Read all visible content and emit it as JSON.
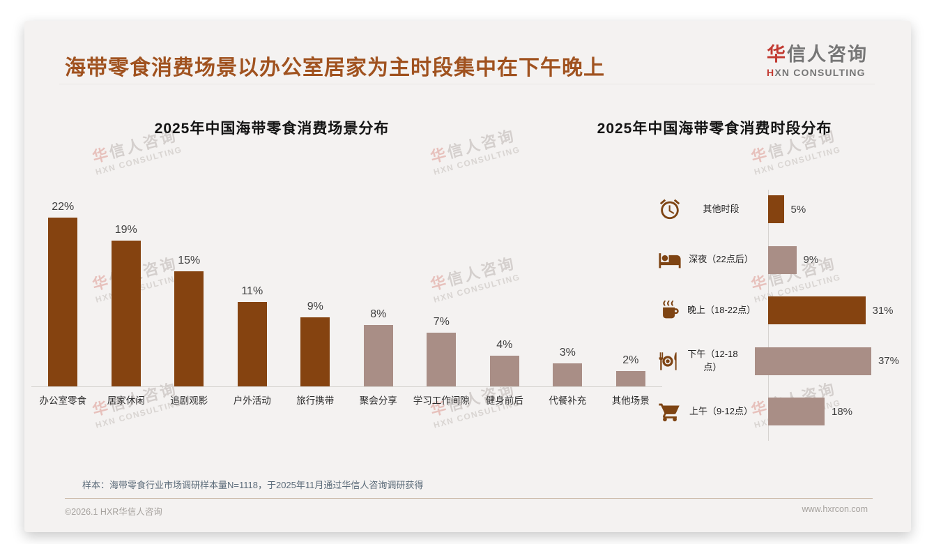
{
  "header": {
    "title": "海带零食消费场景以办公室居家为主时段集中在下午晚上",
    "logo": {
      "red": "华",
      "gray": "信人咨询",
      "sub_red": "H",
      "sub_rest": "XN CONSULTING"
    }
  },
  "watermark": {
    "line1_red": "华",
    "line1_rest": "信人咨询",
    "line2": "HXN CONSULTING"
  },
  "chart_data": [
    {
      "type": "bar",
      "orientation": "vertical",
      "title": "2025年中国海带零食消费场景分布",
      "categories": [
        "办公室零食",
        "居家休闲",
        "追剧观影",
        "户外活动",
        "旅行携带",
        "聚会分享",
        "学习工作间隙",
        "健身前后",
        "代餐补充",
        "其他场景"
      ],
      "values": [
        22,
        19,
        15,
        11,
        9,
        8,
        7,
        4,
        3,
        2
      ],
      "value_labels": [
        "22%",
        "19%",
        "15%",
        "11%",
        "9%",
        "8%",
        "7%",
        "4%",
        "3%",
        "2%"
      ],
      "unit": "%",
      "ylim": [
        0,
        24
      ],
      "grid": false,
      "color_pattern": [
        "dark",
        "dark",
        "dark",
        "dark",
        "dark",
        "light",
        "light",
        "light",
        "light",
        "light"
      ]
    },
    {
      "type": "bar",
      "orientation": "horizontal",
      "title": "2025年中国海带零食消费时段分布",
      "categories": [
        "其他时段",
        "深夜（22点后）",
        "晚上（18-22点）",
        "下午（12-18点）",
        "上午（9-12点）"
      ],
      "values": [
        5,
        9,
        31,
        37,
        18
      ],
      "value_labels": [
        "5%",
        "9%",
        "31%",
        "37%",
        "18%"
      ],
      "unit": "%",
      "xlim": [
        0,
        40
      ],
      "grid": false,
      "icons": [
        "alarm-clock-icon",
        "bed-icon",
        "coffee-cup-icon",
        "dining-plate-icon",
        "shopping-cart-icon"
      ],
      "color_pattern": [
        "dark",
        "light",
        "dark",
        "light",
        "light"
      ]
    }
  ],
  "footnote": "样本：海带零食行业市场调研样本量N=1118，于2025年11月通过华信人咨询调研获得",
  "footer": {
    "left": "©2026.1 HXR华信人咨询",
    "right": "www.hxrcon.com"
  },
  "colors": {
    "title_brown": "#A0521F",
    "dark_bar": "#854310",
    "light_bar": "#A98E86",
    "icon_brown": "#7E4413",
    "logo_red": "#C23B32",
    "logo_gray": "#767676",
    "card_background": "#F4F2F1"
  }
}
